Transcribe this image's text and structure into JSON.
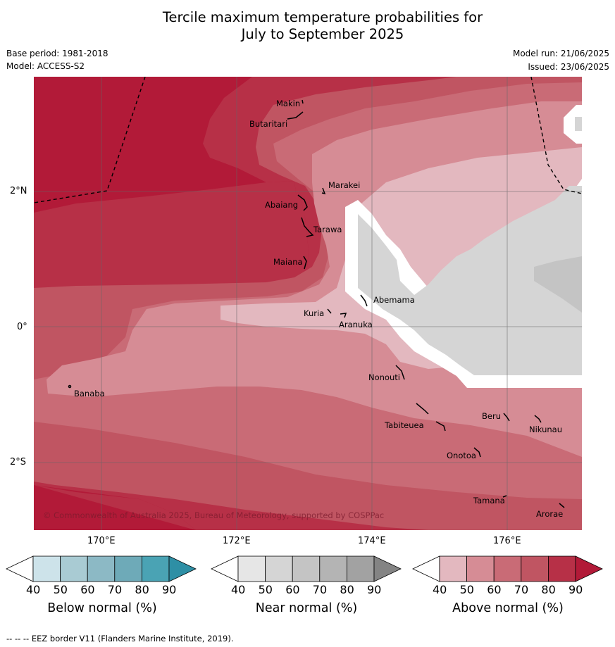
{
  "title_line1": "Tercile maximum temperature probabilities for",
  "title_line2": "July to September 2025",
  "base_period": "Base period: 1981-2018",
  "model": "Model: ACCESS-S2",
  "model_run": "Model run: 21/06/2025",
  "issued": "Issued: 23/06/2025",
  "copyright": "© Commonwealth of Australia 2025, Bureau of Meteorology, supported by COSPPac",
  "footer": "-- -- -- EEZ border V11 (Flanders Marine Institute, 2019).",
  "axes": {
    "lon_ticks": [
      "170°E",
      "172°E",
      "174°E",
      "176°E"
    ],
    "lat_ticks": [
      "2°N",
      "0°",
      "2°S"
    ]
  },
  "places": [
    {
      "name": "Makin"
    },
    {
      "name": "Butaritari"
    },
    {
      "name": "Marakei"
    },
    {
      "name": "Abaiang"
    },
    {
      "name": "Tarawa"
    },
    {
      "name": "Maiana"
    },
    {
      "name": "Abemama"
    },
    {
      "name": "Kuria"
    },
    {
      "name": "Aranuka"
    },
    {
      "name": "Nonouti"
    },
    {
      "name": "Banaba"
    },
    {
      "name": "Beru"
    },
    {
      "name": "Nikunau"
    },
    {
      "name": "Tabiteuea"
    },
    {
      "name": "Onotoa"
    },
    {
      "name": "Tamana"
    },
    {
      "name": "Arorae"
    }
  ],
  "colorbars": [
    {
      "label": "Below normal (%)",
      "ticks": [
        "40",
        "50",
        "60",
        "70",
        "80",
        "90"
      ],
      "colors": [
        "#ffffff",
        "#cde3ea",
        "#a9cbd3",
        "#8cb9c5",
        "#6eaab8",
        "#4aa3b4",
        "#2e8fa5"
      ]
    },
    {
      "label": "Near normal (%)",
      "ticks": [
        "40",
        "50",
        "60",
        "70",
        "80",
        "90"
      ],
      "colors": [
        "#ffffff",
        "#e6e6e6",
        "#d5d5d5",
        "#c4c4c4",
        "#b4b4b4",
        "#a2a2a2",
        "#848484"
      ]
    },
    {
      "label": "Above normal (%)",
      "ticks": [
        "40",
        "50",
        "60",
        "70",
        "80",
        "90"
      ],
      "colors": [
        "#ffffff",
        "#e3b8bf",
        "#d68c95",
        "#c96b76",
        "#c05562",
        "#b73047",
        "#b21a38"
      ]
    }
  ]
}
